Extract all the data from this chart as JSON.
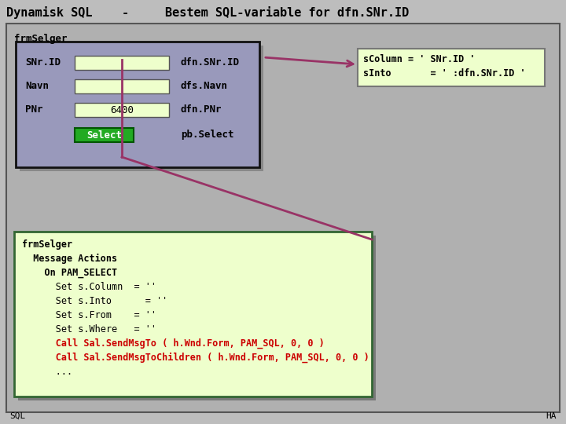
{
  "title_left": "Dynamisk SQL",
  "title_dash": "-",
  "title_right": "Bestem SQL-variable for dfn.SNr.ID",
  "bg_color": "#bdbdbd",
  "outer_box_color": "#b0b0b0",
  "outer_box_border": "#555555",
  "frm_label": "frmSelger",
  "frm_box_color": "#9999bb",
  "frm_box_border": "#111111",
  "frm_shadow_color": "#777777",
  "rows": [
    {
      "label": "SNr.ID",
      "value": "",
      "dfn": "dfn.SNr.ID"
    },
    {
      "label": "Navn",
      "value": "",
      "dfn": "dfs.Navn"
    },
    {
      "label": "PNr",
      "value": "6400",
      "dfn": "dfn.PNr"
    }
  ],
  "button_label": "Select",
  "button_dfn": "pb.Select",
  "button_color": "#22aa22",
  "button_border": "#005500",
  "field_color": "#eeffcc",
  "field_border": "#555555",
  "info_box_color": "#eeffcc",
  "info_box_border": "#777777",
  "info_lines": [
    "sColumn = ‘ SNr.ID ‘",
    "sInto       = ‘ :dfn.SNr.ID ‘"
  ],
  "info_lines_plain": [
    "sColumn = ' SNr.ID '",
    "sInto       = ' :dfn.SNr.ID '"
  ],
  "code_box_color": "#eeffcc",
  "code_box_border": "#336633",
  "code_shadow_color": "#555555",
  "code_lines": [
    "frmSelger",
    "  Message Actions",
    "    On PAM_SELECT",
    "      Set s.Column  = ''",
    "      Set s.Into      = ''",
    "      Set s.From    = ''",
    "      Set s.Where   = ''",
    "      Call Sal.SendMsgTo ( h.Wnd.Form, PAM_SQL, 0, 0 )",
    "      Call Sal.SendMsgToChildren ( h.Wnd.Form, PAM_SQL, 0, 0 )",
    "      ..."
  ],
  "code_bold_rows": [
    0,
    1,
    2
  ],
  "code_highlight_rows": [
    7,
    8
  ],
  "code_highlight_color": "#cc0000",
  "arrow_color": "#993366",
  "footer_left": "SQL",
  "footer_right": "HA"
}
